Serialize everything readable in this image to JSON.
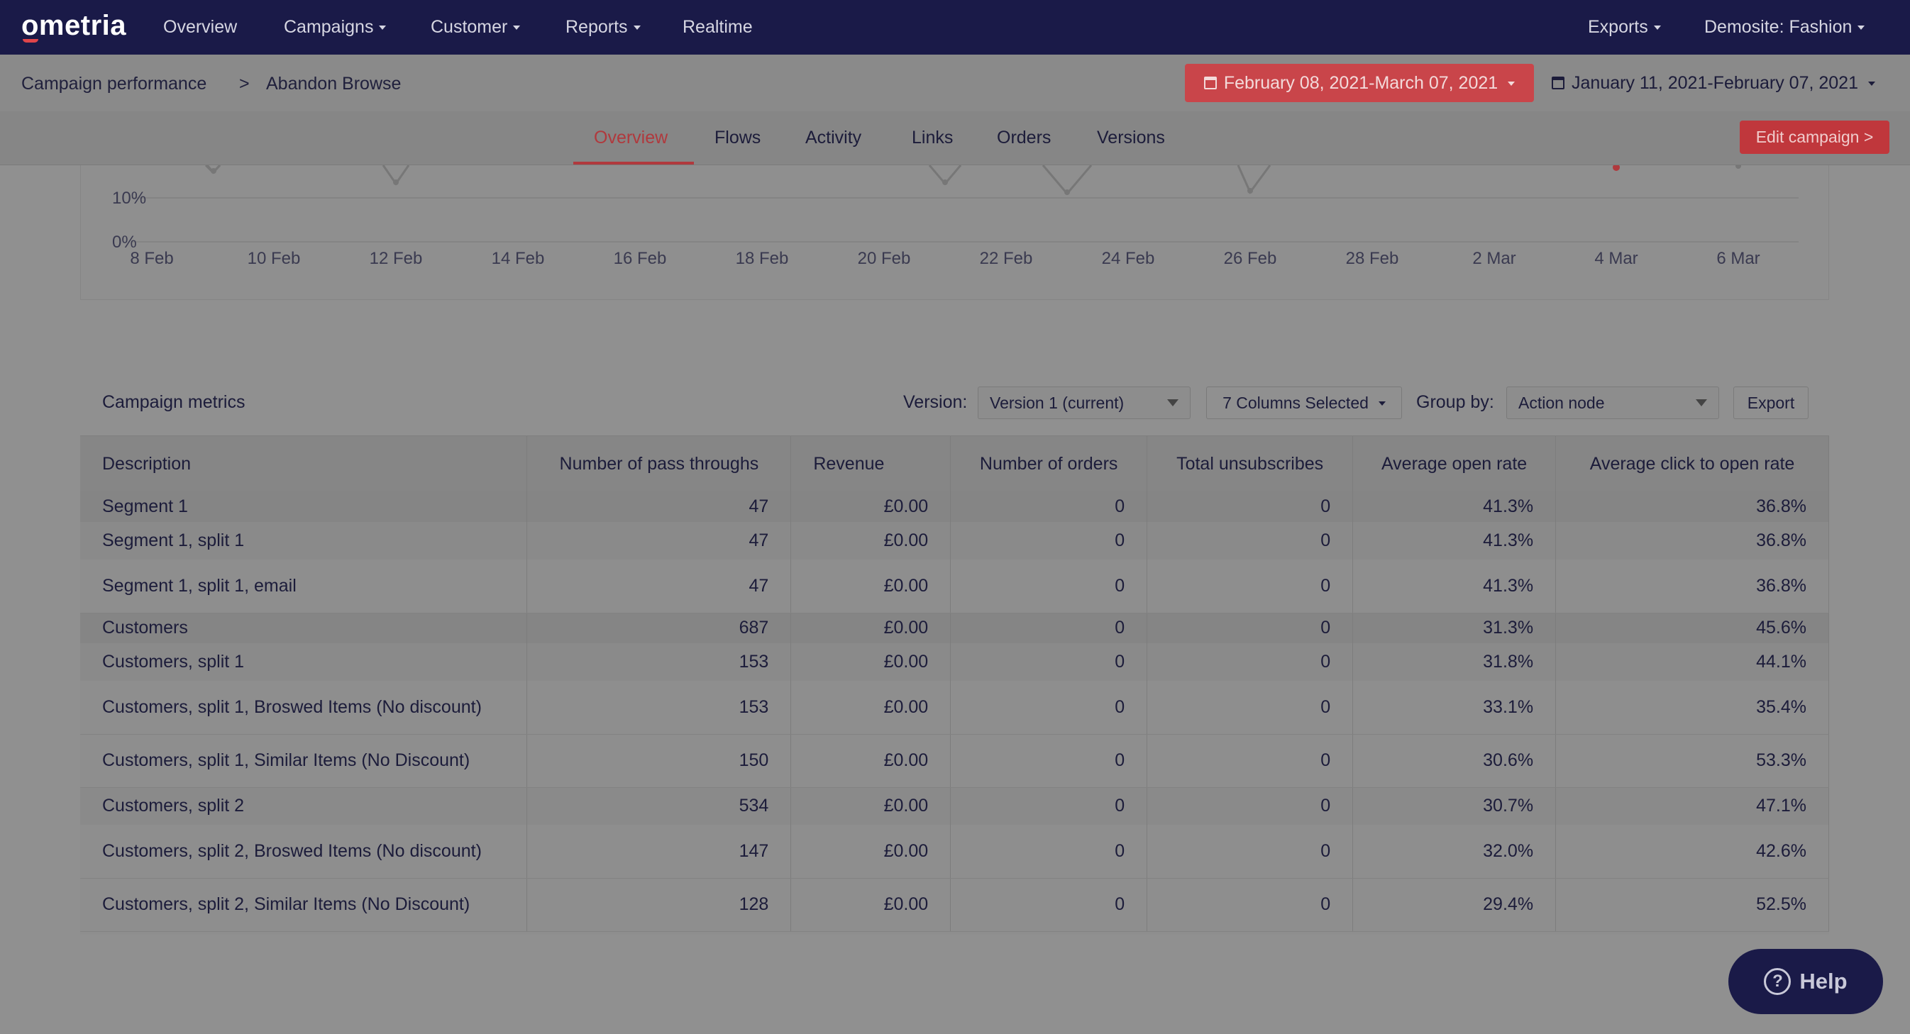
{
  "topnav": {
    "logo": "ometria",
    "items": [
      "Overview",
      "Campaigns",
      "Customer",
      "Reports",
      "Realtime"
    ],
    "right_items": [
      "Exports",
      "Demosite: Fashion"
    ]
  },
  "breadcrumb": {
    "parent": "Campaign performance",
    "separator": ">",
    "current": "Abandon Browse"
  },
  "date_range": {
    "current": "February 08, 2021-March 07, 2021",
    "compare": "January 11, 2021-February 07, 2021"
  },
  "tabs": [
    "Overview",
    "Flows",
    "Activity",
    "Links",
    "Orders",
    "Versions"
  ],
  "active_tab": "Overview",
  "edit_campaign_label": "Edit campaign >",
  "chart": {
    "y_ticks": [
      "10%",
      "0%"
    ],
    "x_ticks": [
      "8 Feb",
      "10 Feb",
      "12 Feb",
      "14 Feb",
      "16 Feb",
      "18 Feb",
      "20 Feb",
      "22 Feb",
      "24 Feb",
      "26 Feb",
      "28 Feb",
      "2 Mar",
      "4 Mar",
      "6 Mar"
    ]
  },
  "metrics": {
    "title": "Campaign metrics",
    "version_label": "Version:",
    "version_value": "Version 1 (current)",
    "columns_selected": "7 Columns Selected",
    "group_by_label": "Group by:",
    "group_by_value": "Action node",
    "export_label": "Export",
    "columns": [
      "Description",
      "Number of pass throughs",
      "Revenue",
      "Number of orders",
      "Total unsubscribes",
      "Average open rate",
      "Average click to open rate"
    ],
    "rows": [
      {
        "type": "seg",
        "cells": [
          "Segment 1",
          "47",
          "£0.00",
          "0",
          "0",
          "41.3%",
          "36.8%"
        ]
      },
      {
        "type": "sub",
        "cells": [
          "Segment 1, split 1",
          "47",
          "£0.00",
          "0",
          "0",
          "41.3%",
          "36.8%"
        ]
      },
      {
        "type": "leaf",
        "cells": [
          "Segment 1, split 1, email",
          "47",
          "£0.00",
          "0",
          "0",
          "41.3%",
          "36.8%"
        ]
      },
      {
        "type": "seg",
        "cells": [
          "Customers",
          "687",
          "£0.00",
          "0",
          "0",
          "31.3%",
          "45.6%"
        ]
      },
      {
        "type": "sub",
        "cells": [
          "Customers, split 1",
          "153",
          "£0.00",
          "0",
          "0",
          "31.8%",
          "44.1%"
        ]
      },
      {
        "type": "leaf",
        "cells": [
          "Customers, split 1, Broswed Items (No discount)",
          "153",
          "£0.00",
          "0",
          "0",
          "33.1%",
          "35.4%"
        ]
      },
      {
        "type": "leaf",
        "cells": [
          "Customers, split 1, Similar Items (No Discount)",
          "150",
          "£0.00",
          "0",
          "0",
          "30.6%",
          "53.3%"
        ]
      },
      {
        "type": "sub",
        "cells": [
          "Customers, split 2",
          "534",
          "£0.00",
          "0",
          "0",
          "30.7%",
          "47.1%"
        ]
      },
      {
        "type": "leaf",
        "cells": [
          "Customers, split 2, Broswed Items (No discount)",
          "147",
          "£0.00",
          "0",
          "0",
          "32.0%",
          "42.6%"
        ]
      },
      {
        "type": "leaf",
        "cells": [
          "Customers, split 2, Similar Items (No Discount)",
          "128",
          "£0.00",
          "0",
          "0",
          "29.4%",
          "52.5%"
        ]
      }
    ]
  },
  "help_label": "Help"
}
